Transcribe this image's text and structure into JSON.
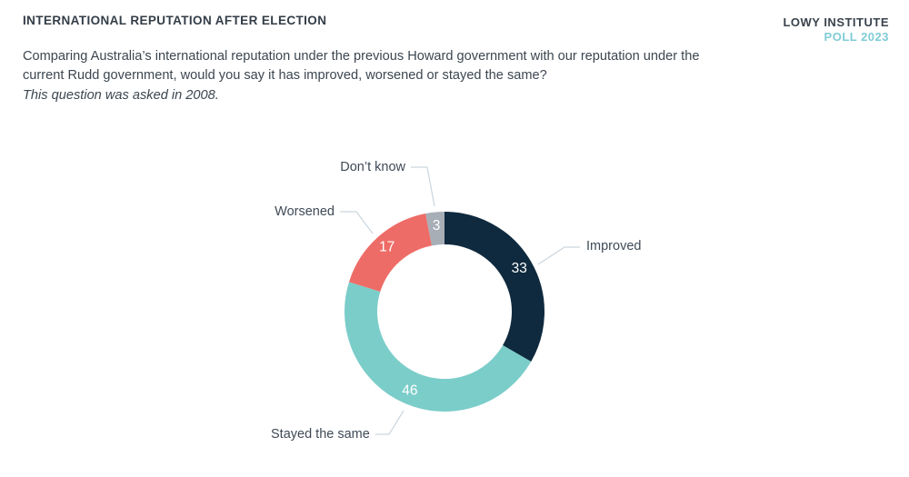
{
  "header": {
    "title": "INTERNATIONAL REPUTATION AFTER ELECTION",
    "question": "Comparing Australia’s international reputation under the previous Howard government with our reputation under the current Rudd government, would you say it has improved, worsened or stayed the same?",
    "note": "This question was asked in 2008."
  },
  "brand": {
    "name": "LOWY INSTITUTE",
    "edition": "POLL 2023",
    "name_color": "#3a434d",
    "edition_color": "#80ccd6"
  },
  "chart_data": {
    "type": "pie",
    "donut": true,
    "title": "International reputation after election",
    "categories": [
      "Improved",
      "Stayed the same",
      "Worsened",
      "Don’t know"
    ],
    "values": [
      33,
      46,
      17,
      3
    ],
    "unit": "percent",
    "colors": [
      "#0f2a3f",
      "#7bcdc9",
      "#ee6c67",
      "#a7aeb6"
    ],
    "start_angle_deg": 0,
    "direction": "clockwise",
    "value_label_color": "#ffffff",
    "leader_line_color": "#ccd6de",
    "legend_position": "external-labels-with-leader-lines"
  }
}
